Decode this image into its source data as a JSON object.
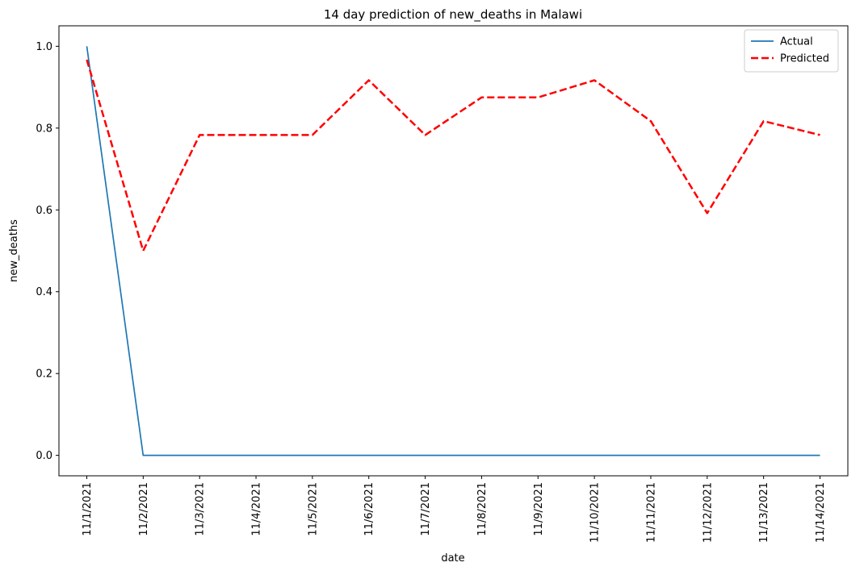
{
  "chart_data": {
    "type": "line",
    "title": "14 day prediction of new_deaths in Malawi",
    "xlabel": "date",
    "ylabel": "new_deaths",
    "categories": [
      "11/1/2021",
      "11/2/2021",
      "11/3/2021",
      "11/4/2021",
      "11/5/2021",
      "11/6/2021",
      "11/7/2021",
      "11/8/2021",
      "11/9/2021",
      "11/10/2021",
      "11/11/2021",
      "11/12/2021",
      "11/13/2021",
      "11/14/2021"
    ],
    "ylim": [
      -0.05,
      1.05
    ],
    "yticks": [
      0.0,
      0.2,
      0.4,
      0.6,
      0.8,
      1.0
    ],
    "ytick_labels": [
      "0.0",
      "0.2",
      "0.4",
      "0.6",
      "0.8",
      "1.0"
    ],
    "grid": false,
    "legend_position": "upper right",
    "series": [
      {
        "name": "Actual",
        "color": "#1f77b4",
        "style": "solid",
        "values": [
          1.0,
          0.0,
          0.0,
          0.0,
          0.0,
          0.0,
          0.0,
          0.0,
          0.0,
          0.0,
          0.0,
          0.0,
          0.0,
          0.0
        ]
      },
      {
        "name": "Predicted",
        "color": "#ff0000",
        "style": "dashed",
        "values": [
          0.967,
          0.5,
          0.783,
          0.783,
          0.783,
          0.917,
          0.783,
          0.875,
          0.875,
          0.917,
          0.817,
          0.592,
          0.817,
          0.783
        ]
      }
    ]
  }
}
